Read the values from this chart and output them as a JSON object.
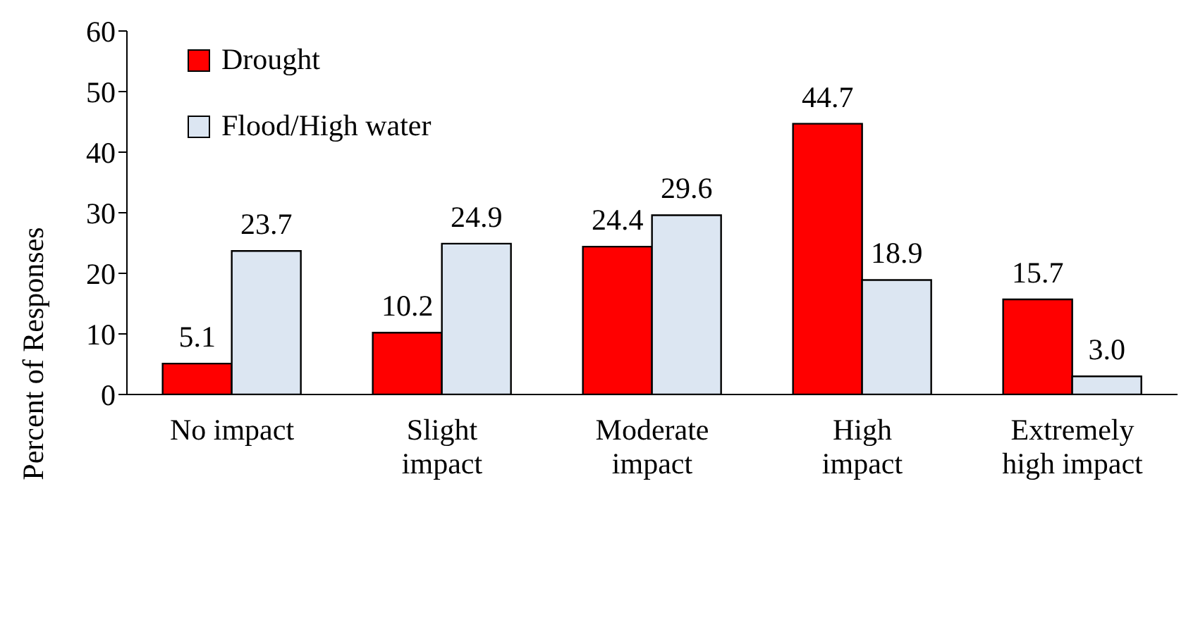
{
  "chart_data": {
    "type": "bar",
    "ylabel": "Percent of Responses",
    "categories": [
      "No impact",
      "Slight impact",
      "Moderate impact",
      "High impact",
      "Extremely high impact"
    ],
    "series": [
      {
        "name": "Drought",
        "color": "#ff0000",
        "values": [
          5.1,
          10.2,
          24.4,
          44.7,
          15.7
        ],
        "value_labels": [
          "5.1",
          "10.2",
          "24.4",
          "44.7",
          "15.7"
        ]
      },
      {
        "name": "Flood/High water",
        "color": "#dce6f2",
        "values": [
          23.7,
          24.9,
          29.6,
          18.9,
          3.0
        ],
        "value_labels": [
          "23.7",
          "24.9",
          "29.6",
          "18.9",
          "3.0"
        ]
      }
    ],
    "ylim": [
      0,
      60
    ],
    "yticks": [
      0,
      10,
      20,
      30,
      40,
      50,
      60
    ],
    "grid": false,
    "legend": "top left"
  }
}
